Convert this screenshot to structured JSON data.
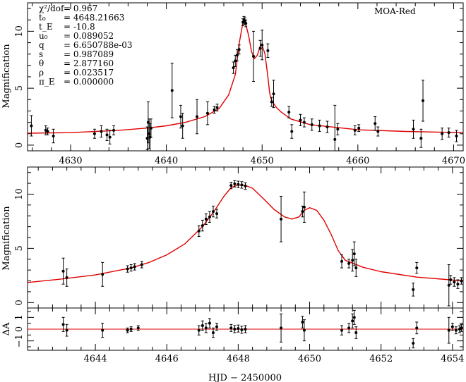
{
  "chart_data": [
    {
      "type": "scatter",
      "title": "",
      "dataset_label": "MOA-Red",
      "xlabel": "",
      "ylabel": "Magnification",
      "xlim": [
        4625.5,
        4671
      ],
      "ylim": [
        -0.5,
        12.5
      ],
      "xticks": [
        4630,
        4640,
        4650,
        4660,
        4670
      ],
      "yticks": [
        0,
        5,
        10
      ],
      "params": [
        {
          "symbol": "χ²/dof",
          "value": "= 0.967"
        },
        {
          "symbol": "t₀",
          "value": "= 4648.21663"
        },
        {
          "symbol": "t_E",
          "value": "= -10.8"
        },
        {
          "symbol": "u₀",
          "value": "= 0.089052"
        },
        {
          "symbol": "q",
          "value": "= 6.650788e-03"
        },
        {
          "symbol": "s",
          "value": "= 0.987089"
        },
        {
          "symbol": "θ",
          "value": "= 2.877160"
        },
        {
          "symbol": "ρ",
          "value": "= 0.023517"
        },
        {
          "symbol": "π_E",
          "value": "= 0.000000"
        }
      ],
      "model_curve": {
        "x": [
          4625.5,
          4630,
          4635,
          4638,
          4640,
          4642,
          4644,
          4645.5,
          4646.5,
          4647.2,
          4647.6,
          4648.0,
          4648.3,
          4648.6,
          4648.9,
          4649.2,
          4649.5,
          4649.8,
          4650.0,
          4650.3,
          4650.6,
          4650.8,
          4651.0,
          4651.5,
          4652,
          4653,
          4655,
          4660,
          4665,
          4671
        ],
        "y": [
          1.05,
          1.1,
          1.3,
          1.5,
          1.7,
          2.0,
          2.5,
          3.2,
          4.4,
          6.2,
          8.9,
          10.8,
          10.6,
          9.6,
          8.2,
          7.6,
          7.9,
          8.7,
          8.8,
          8.0,
          6.0,
          4.5,
          3.9,
          3.3,
          2.9,
          2.3,
          1.8,
          1.35,
          1.2,
          1.1
        ]
      },
      "points": [
        {
          "x": 4625.9,
          "y": 1.7,
          "err": 0.9
        },
        {
          "x": 4627.4,
          "y": 1.3,
          "err": 0.4
        },
        {
          "x": 4627.6,
          "y": 1.2,
          "err": 0.3
        },
        {
          "x": 4628.2,
          "y": 0.8,
          "err": 0.6
        },
        {
          "x": 4632.5,
          "y": 1.0,
          "err": 0.4
        },
        {
          "x": 4633.2,
          "y": 1.2,
          "err": 0.5
        },
        {
          "x": 4633.8,
          "y": 0.9,
          "err": 0.5
        },
        {
          "x": 4634.1,
          "y": 0.7,
          "err": 0.6
        },
        {
          "x": 4634.5,
          "y": 1.3,
          "err": 0.4
        },
        {
          "x": 4638.0,
          "y": 0.6,
          "err": 1.0
        },
        {
          "x": 4638.1,
          "y": 2.0,
          "err": 1.8
        },
        {
          "x": 4638.2,
          "y": 1.0,
          "err": 1.3
        },
        {
          "x": 4638.3,
          "y": 0.7,
          "err": 1.2
        },
        {
          "x": 4638.4,
          "y": 1.5,
          "err": 0.8
        },
        {
          "x": 4640.6,
          "y": 4.8,
          "err": 2.4
        },
        {
          "x": 4641.5,
          "y": 2.5,
          "err": 1.0
        },
        {
          "x": 4641.7,
          "y": 1.7,
          "err": 1.1
        },
        {
          "x": 4643.2,
          "y": 2.5,
          "err": 1.5
        },
        {
          "x": 4644.3,
          "y": 2.8,
          "err": 1.0
        },
        {
          "x": 4645.0,
          "y": 3.1,
          "err": 0.3
        },
        {
          "x": 4645.3,
          "y": 3.3,
          "err": 0.3
        },
        {
          "x": 4647.0,
          "y": 6.8,
          "err": 0.5
        },
        {
          "x": 4647.2,
          "y": 7.4,
          "err": 0.5
        },
        {
          "x": 4647.4,
          "y": 7.9,
          "err": 0.5
        },
        {
          "x": 4647.6,
          "y": 8.4,
          "err": 0.4
        },
        {
          "x": 4648.0,
          "y": 10.8,
          "err": 0.3
        },
        {
          "x": 4648.1,
          "y": 11.0,
          "err": 0.3
        },
        {
          "x": 4648.2,
          "y": 10.9,
          "err": 0.3
        },
        {
          "x": 4648.3,
          "y": 10.7,
          "err": 0.3
        },
        {
          "x": 4649.1,
          "y": 7.8,
          "err": 2.2
        },
        {
          "x": 4649.8,
          "y": 8.5,
          "err": 0.7
        },
        {
          "x": 4650.0,
          "y": 8.8,
          "err": 1.3
        },
        {
          "x": 4650.6,
          "y": 8.3,
          "err": 0.6
        },
        {
          "x": 4651.0,
          "y": 3.8,
          "err": 0.4
        },
        {
          "x": 4651.2,
          "y": 4.5,
          "err": 1.2
        },
        {
          "x": 4652.8,
          "y": 2.9,
          "err": 0.5
        },
        {
          "x": 4653.1,
          "y": 1.2,
          "err": 0.6
        },
        {
          "x": 4654.0,
          "y": 2.2,
          "err": 0.5
        },
        {
          "x": 4654.4,
          "y": 2.0,
          "err": 0.4
        },
        {
          "x": 4655.2,
          "y": 1.8,
          "err": 0.5
        },
        {
          "x": 4656.0,
          "y": 1.7,
          "err": 0.5
        },
        {
          "x": 4656.8,
          "y": 1.6,
          "err": 0.5
        },
        {
          "x": 4657.6,
          "y": 0.5,
          "err": 3.0
        },
        {
          "x": 4657.9,
          "y": 1.4,
          "err": 0.5
        },
        {
          "x": 4659.7,
          "y": 1.3,
          "err": 0.4
        },
        {
          "x": 4660.1,
          "y": 1.5,
          "err": 0.3
        },
        {
          "x": 4661.8,
          "y": 1.9,
          "err": 0.6
        },
        {
          "x": 4662.1,
          "y": 1.2,
          "err": 0.4
        },
        {
          "x": 4665.8,
          "y": 1.4,
          "err": 0.8
        },
        {
          "x": 4666.6,
          "y": 0.6,
          "err": 0.8
        },
        {
          "x": 4666.8,
          "y": 3.9,
          "err": 1.8
        },
        {
          "x": 4668.8,
          "y": 1.0,
          "err": 0.5
        },
        {
          "x": 4669.5,
          "y": 1.1,
          "err": 0.4
        },
        {
          "x": 4670.3,
          "y": 0.8,
          "err": 0.5
        }
      ]
    },
    {
      "type": "scatter",
      "title": "",
      "xlabel": "",
      "ylabel": "Magnification",
      "xlim": [
        4642.1,
        4654.3
      ],
      "ylim": [
        -0.5,
        12.5
      ],
      "xticks": [
        4644,
        4646,
        4648,
        4650,
        4652,
        4654
      ],
      "yticks": [
        0,
        5,
        10
      ],
      "model_curve": {
        "x": [
          4642.1,
          4643,
          4644,
          4645,
          4645.5,
          4646,
          4646.5,
          4647,
          4647.3,
          4647.6,
          4647.8,
          4648.0,
          4648.2,
          4648.4,
          4648.7,
          4649.0,
          4649.3,
          4649.5,
          4649.7,
          4649.85,
          4650.0,
          4650.2,
          4650.4,
          4650.6,
          4650.8,
          4651.0,
          4651.5,
          4652,
          4653,
          4654.3
        ],
        "y": [
          1.85,
          2.15,
          2.55,
          3.2,
          3.7,
          4.4,
          5.4,
          7.0,
          8.3,
          9.8,
          10.6,
          10.85,
          10.8,
          10.55,
          9.6,
          8.6,
          7.9,
          7.7,
          7.9,
          8.5,
          8.75,
          8.5,
          7.6,
          6.3,
          4.8,
          3.9,
          3.25,
          2.85,
          2.35,
          2.0
        ]
      },
      "points": [
        {
          "x": 4643.1,
          "y": 2.9,
          "err": 1.2
        },
        {
          "x": 4643.2,
          "y": 2.3,
          "err": 0.8
        },
        {
          "x": 4644.2,
          "y": 2.6,
          "err": 1.1
        },
        {
          "x": 4644.9,
          "y": 3.1,
          "err": 0.3
        },
        {
          "x": 4645.0,
          "y": 3.2,
          "err": 0.3
        },
        {
          "x": 4645.1,
          "y": 3.3,
          "err": 0.3
        },
        {
          "x": 4645.3,
          "y": 3.5,
          "err": 0.3
        },
        {
          "x": 4646.9,
          "y": 6.6,
          "err": 0.5
        },
        {
          "x": 4647.0,
          "y": 7.1,
          "err": 0.5
        },
        {
          "x": 4647.1,
          "y": 7.7,
          "err": 0.5
        },
        {
          "x": 4647.2,
          "y": 7.9,
          "err": 0.5
        },
        {
          "x": 4647.3,
          "y": 8.4,
          "err": 0.5
        },
        {
          "x": 4647.4,
          "y": 8.2,
          "err": 0.4
        },
        {
          "x": 4647.8,
          "y": 10.8,
          "err": 0.3
        },
        {
          "x": 4647.9,
          "y": 10.95,
          "err": 0.3
        },
        {
          "x": 4648.0,
          "y": 10.9,
          "err": 0.3
        },
        {
          "x": 4648.1,
          "y": 10.85,
          "err": 0.3
        },
        {
          "x": 4648.2,
          "y": 10.75,
          "err": 0.3
        },
        {
          "x": 4649.2,
          "y": 7.7,
          "err": 2.1
        },
        {
          "x": 4649.8,
          "y": 8.4,
          "err": 0.5
        },
        {
          "x": 4649.85,
          "y": 8.8,
          "err": 1.4
        },
        {
          "x": 4650.9,
          "y": 3.8,
          "err": 0.6
        },
        {
          "x": 4651.1,
          "y": 3.6,
          "err": 0.4
        },
        {
          "x": 4651.2,
          "y": 3.9,
          "err": 1.0
        },
        {
          "x": 4651.25,
          "y": 4.5,
          "err": 1.1
        },
        {
          "x": 4651.3,
          "y": 3.2,
          "err": 0.8
        },
        {
          "x": 4652.9,
          "y": 1.2,
          "err": 0.6
        },
        {
          "x": 4653.0,
          "y": 3.2,
          "err": 0.5
        },
        {
          "x": 4653.9,
          "y": 1.6,
          "err": 1.9
        },
        {
          "x": 4653.95,
          "y": 2.1,
          "err": 0.4
        },
        {
          "x": 4654.05,
          "y": 1.9,
          "err": 0.4
        },
        {
          "x": 4654.15,
          "y": 1.7,
          "err": 0.4
        },
        {
          "x": 4654.25,
          "y": 2.0,
          "err": 0.3
        }
      ]
    },
    {
      "type": "scatter",
      "title": "",
      "xlabel": "HJD − 2450000",
      "ylabel": "ΔA",
      "xlim": [
        4642.1,
        4654.3
      ],
      "ylim": [
        -1.8,
        1.8
      ],
      "xticks": [
        4644,
        4646,
        4648,
        4650,
        4652,
        4654
      ],
      "yticks": [
        -1,
        0,
        1
      ],
      "ytick_labels": [
        "−1",
        "0",
        "1"
      ],
      "zero_line": 0,
      "points": [
        {
          "x": 4643.1,
          "y": 0.4,
          "err": 0.6
        },
        {
          "x": 4643.2,
          "y": -0.1,
          "err": 0.5
        },
        {
          "x": 4644.2,
          "y": -0.1,
          "err": 0.6
        },
        {
          "x": 4644.9,
          "y": -0.1,
          "err": 0.2
        },
        {
          "x": 4645.0,
          "y": 0.0,
          "err": 0.2
        },
        {
          "x": 4645.2,
          "y": 0.1,
          "err": 0.2
        },
        {
          "x": 4646.9,
          "y": -0.1,
          "err": 0.4
        },
        {
          "x": 4647.0,
          "y": 0.3,
          "err": 0.4
        },
        {
          "x": 4647.1,
          "y": 0.1,
          "err": 0.4
        },
        {
          "x": 4647.2,
          "y": 0.5,
          "err": 0.4
        },
        {
          "x": 4647.3,
          "y": -0.3,
          "err": 0.4
        },
        {
          "x": 4647.4,
          "y": 0.2,
          "err": 0.3
        },
        {
          "x": 4647.8,
          "y": 0.1,
          "err": 0.3
        },
        {
          "x": 4647.9,
          "y": 0.0,
          "err": 0.3
        },
        {
          "x": 4648.0,
          "y": 0.05,
          "err": 0.3
        },
        {
          "x": 4648.1,
          "y": -0.05,
          "err": 0.3
        },
        {
          "x": 4648.2,
          "y": 0.0,
          "err": 0.3
        },
        {
          "x": 4649.2,
          "y": 0.1,
          "err": 1.2
        },
        {
          "x": 4649.8,
          "y": 0.6,
          "err": 0.5
        },
        {
          "x": 4649.85,
          "y": -0.1,
          "err": 0.9
        },
        {
          "x": 4650.9,
          "y": -0.1,
          "err": 0.4
        },
        {
          "x": 4651.1,
          "y": 0.1,
          "err": 0.4
        },
        {
          "x": 4651.2,
          "y": 0.7,
          "err": 0.6
        },
        {
          "x": 4651.25,
          "y": 1.0,
          "err": 0.6
        },
        {
          "x": 4651.3,
          "y": -0.3,
          "err": 0.5
        },
        {
          "x": 4652.9,
          "y": -1.2,
          "err": 0.4
        },
        {
          "x": 4653.0,
          "y": 0.1,
          "err": 0.5
        },
        {
          "x": 4653.9,
          "y": -0.1,
          "err": 1.1
        },
        {
          "x": 4654.0,
          "y": 0.2,
          "err": 0.3
        },
        {
          "x": 4654.1,
          "y": -0.1,
          "err": 0.3
        },
        {
          "x": 4654.2,
          "y": 0.0,
          "err": 0.3
        },
        {
          "x": 4654.25,
          "y": 0.1,
          "err": 0.3
        }
      ]
    }
  ],
  "colors": {
    "model": "#e00000",
    "data": "#000000",
    "axes": "#000000"
  }
}
